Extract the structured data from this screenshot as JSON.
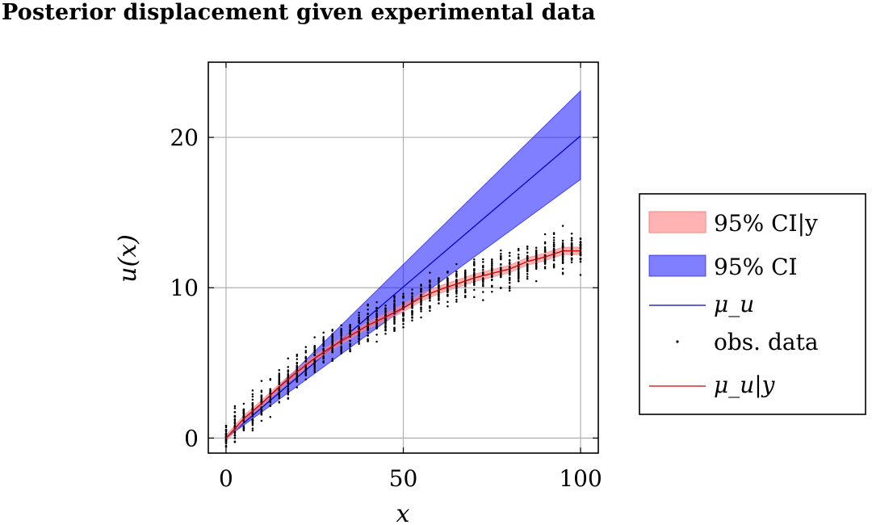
{
  "chart_data": {
    "type": "line",
    "title": "Posterior displacement given experimental data",
    "xlabel": "x",
    "ylabel": "u(x)",
    "xlim": [
      -5,
      105
    ],
    "ylim": [
      -1,
      25
    ],
    "xticks": [
      0,
      50,
      100
    ],
    "yticks": [
      0,
      10,
      20
    ],
    "grid": true,
    "legend_placement": "right, outside",
    "series": [
      {
        "name": "95% CI|y",
        "kind": "band",
        "color": "#ff8080",
        "x": [
          0,
          5,
          10,
          15,
          20,
          25,
          30,
          35,
          40,
          45,
          50,
          55,
          60,
          65,
          70,
          75,
          80,
          85,
          90,
          95,
          100
        ],
        "lower": [
          -0.2,
          1.1,
          2.1,
          3.2,
          4.2,
          5.1,
          5.9,
          6.6,
          7.3,
          7.8,
          8.4,
          9.1,
          9.6,
          10.0,
          10.4,
          10.7,
          11.0,
          11.5,
          11.8,
          12.2,
          12.2
        ],
        "upper": [
          0.2,
          1.5,
          2.5,
          3.6,
          4.6,
          5.5,
          6.3,
          7.0,
          7.7,
          8.3,
          8.9,
          9.6,
          10.1,
          10.5,
          10.9,
          11.2,
          11.5,
          12.0,
          12.3,
          12.7,
          12.7
        ]
      },
      {
        "name": "95% CI",
        "kind": "band",
        "color": "#0000ff",
        "x": [
          0,
          100
        ],
        "lower": [
          0,
          17.2
        ],
        "upper": [
          0,
          23.1
        ]
      },
      {
        "name": "μ_u",
        "kind": "line",
        "color": "#0000cc",
        "x": [
          0,
          100
        ],
        "y": [
          0,
          20.1
        ]
      },
      {
        "name": "obs. data",
        "kind": "scatter",
        "color": "#000000",
        "x": [
          0,
          2.5,
          5,
          7.5,
          10,
          12.5,
          15,
          17.5,
          20,
          22.5,
          25,
          27.5,
          30,
          32.5,
          35,
          37.5,
          40,
          42.5,
          45,
          47.5,
          50,
          52.5,
          55,
          57.5,
          60,
          62.5,
          65,
          67.5,
          70,
          72.5,
          75,
          77.5,
          80,
          82.5,
          85,
          87.5,
          90,
          92.5,
          95,
          97.5,
          100
        ],
        "center": [
          0.0,
          0.8,
          1.3,
          1.8,
          2.3,
          2.8,
          3.4,
          3.8,
          4.4,
          4.8,
          5.3,
          5.7,
          6.1,
          6.5,
          6.8,
          7.2,
          7.5,
          7.8,
          8.1,
          8.3,
          8.6,
          9.0,
          9.3,
          9.6,
          9.9,
          10.1,
          10.3,
          10.6,
          10.7,
          10.9,
          11.0,
          11.2,
          11.3,
          11.5,
          11.7,
          11.9,
          12.0,
          12.2,
          12.4,
          12.5,
          12.5
        ],
        "spread": 1.4
      },
      {
        "name": "μ_u|y",
        "kind": "line",
        "color": "#cc0000",
        "x": [
          0,
          5,
          10,
          15,
          20,
          25,
          30,
          35,
          40,
          45,
          50,
          55,
          60,
          65,
          70,
          75,
          80,
          85,
          90,
          95,
          100
        ],
        "y": [
          0,
          1.3,
          2.3,
          3.4,
          4.4,
          5.3,
          6.1,
          6.8,
          7.5,
          8.05,
          8.65,
          9.35,
          9.85,
          10.25,
          10.65,
          10.95,
          11.25,
          11.75,
          12.05,
          12.45,
          12.45
        ]
      }
    ]
  }
}
